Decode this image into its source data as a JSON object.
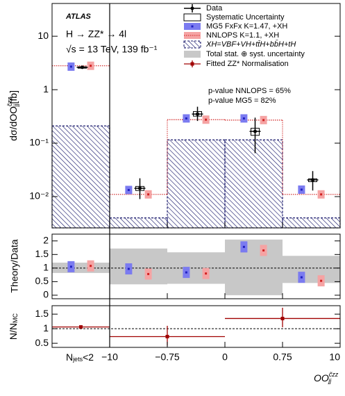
{
  "chart_data": [
    {
      "type": "histogram",
      "title": "ATLAS",
      "annotations": [
        "H → ZZ* → 4l",
        "√s = 13 TeV, 139 fb⁻¹",
        "p-value NNLOPS = 65%",
        "p-value MG5 = 82%"
      ],
      "y_label": {
        "main": "dσ/dOO",
        "sup": "c̃zz",
        "sub": "jj",
        "unit": "[fb]"
      },
      "log_y": true,
      "ylim": [
        0.0026,
        41
      ],
      "yticks": [
        {
          "value": 0.01,
          "label": "10⁻²"
        },
        {
          "value": 0.1,
          "label": "10⁻¹"
        },
        1,
        10
      ],
      "series": [
        {
          "name": "Data",
          "color": "#000000",
          "values": [
            2.62,
            0.0143,
            0.35,
            0.166,
            0.0205
          ],
          "lower": [
            2.5,
            0.009,
            0.26,
            0.065,
            0.013
          ],
          "upper": [
            2.75,
            0.022,
            0.48,
            0.3,
            0.03
          ]
        },
        {
          "name": "Systematic Uncertainty",
          "color": "#000000",
          "lower": [
            2.57,
            0.013,
            0.32,
            0.14,
            0.019
          ],
          "upper": [
            2.68,
            0.0155,
            0.39,
            0.19,
            0.0215
          ]
        },
        {
          "name": "MG5 FxFx K=1.47, +XH",
          "color": "#7b7bf0",
          "values": [
            2.7,
            0.0133,
            0.29,
            0.29,
            0.0135
          ]
        },
        {
          "name": "NNLOPS K=1.1, +XH",
          "color": "#f5a3a3",
          "values": [
            2.8,
            0.011,
            0.275,
            0.27,
            0.011
          ]
        },
        {
          "name": "XH=VBF+VH+tt̄H+bb̄H+tH",
          "color": "#1c1c6e",
          "values": [
            0.21,
            0.004,
            0.115,
            0.115,
            0.004
          ]
        }
      ]
    },
    {
      "type": "scatter",
      "y_label": "Theory/Data",
      "ylim": [
        -0.13,
        2.25
      ],
      "yticks": [
        0,
        0.5,
        1,
        1.5,
        2
      ],
      "reference_line": 1,
      "band": {
        "name": "Total stat. ⊕ syst. uncertainty",
        "color": "#c8c8c8",
        "lower": [
          0.82,
          0.4,
          0.42,
          0.0,
          0.45
        ],
        "upper": [
          1.2,
          1.72,
          1.58,
          2.05,
          1.45
        ]
      },
      "series": [
        {
          "color": "#7b7bf0",
          "values": [
            1.05,
            0.97,
            0.84,
            1.78,
            0.66
          ]
        },
        {
          "color": "#f5a3a3",
          "values": [
            1.08,
            0.78,
            0.8,
            1.65,
            0.53
          ]
        }
      ]
    },
    {
      "type": "errorbar",
      "y_label": {
        "main": "N/N",
        "sub": "MC"
      },
      "ylim": [
        0.36,
        1.79
      ],
      "yticks": [
        0.5,
        1,
        1.5
      ],
      "reference_line": 1,
      "series": [
        {
          "name": "Fitted ZZ* Normalisation",
          "color": "#a00000",
          "values": [
            1.06,
            0.73,
            1.35
          ],
          "lower": [
            1.03,
            0.42,
            1.05
          ],
          "upper": [
            1.09,
            1.1,
            1.72
          ]
        }
      ],
      "first_bin_label": {
        "main": "N",
        "sub": "jets",
        "suffix": "<2"
      },
      "bin_edges": [
        {
          "value": -10,
          "label": "−10"
        },
        {
          "value": -0.75,
          "label": "−0.75"
        },
        0,
        0.75,
        10
      ],
      "x_label": {
        "main": "OO",
        "sup": "c̃zz",
        "sub": "jj"
      }
    }
  ]
}
